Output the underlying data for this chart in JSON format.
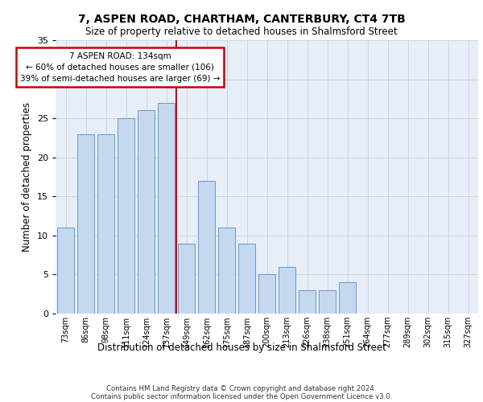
{
  "title1": "7, ASPEN ROAD, CHARTHAM, CANTERBURY, CT4 7TB",
  "title2": "Size of property relative to detached houses in Shalmsford Street",
  "xlabel": "Distribution of detached houses by size in Shalmsford Street",
  "ylabel": "Number of detached properties",
  "categories": [
    "73sqm",
    "86sqm",
    "98sqm",
    "111sqm",
    "124sqm",
    "137sqm",
    "149sqm",
    "162sqm",
    "175sqm",
    "187sqm",
    "200sqm",
    "213sqm",
    "226sqm",
    "238sqm",
    "251sqm",
    "264sqm",
    "277sqm",
    "289sqm",
    "302sqm",
    "315sqm",
    "327sqm"
  ],
  "values": [
    11,
    23,
    23,
    25,
    26,
    27,
    9,
    17,
    11,
    9,
    5,
    6,
    3,
    3,
    4,
    0,
    0,
    0,
    0,
    0,
    0
  ],
  "bar_color": "#c5d8f0",
  "bar_edge_color": "#6699cc",
  "red_line_x": 5.5,
  "annotation_text": "7 ASPEN ROAD: 134sqm\n← 60% of detached houses are smaller (106)\n39% of semi-detached houses are larger (69) →",
  "annotation_box_color": "#ffffff",
  "annotation_box_edge_color": "#cc0000",
  "ylim": [
    0,
    35
  ],
  "yticks": [
    0,
    5,
    10,
    15,
    20,
    25,
    30,
    35
  ],
  "background_color": "#e8eef8",
  "footer1": "Contains HM Land Registry data © Crown copyright and database right 2024.",
  "footer2": "Contains public sector information licensed under the Open Government Licence v3.0."
}
